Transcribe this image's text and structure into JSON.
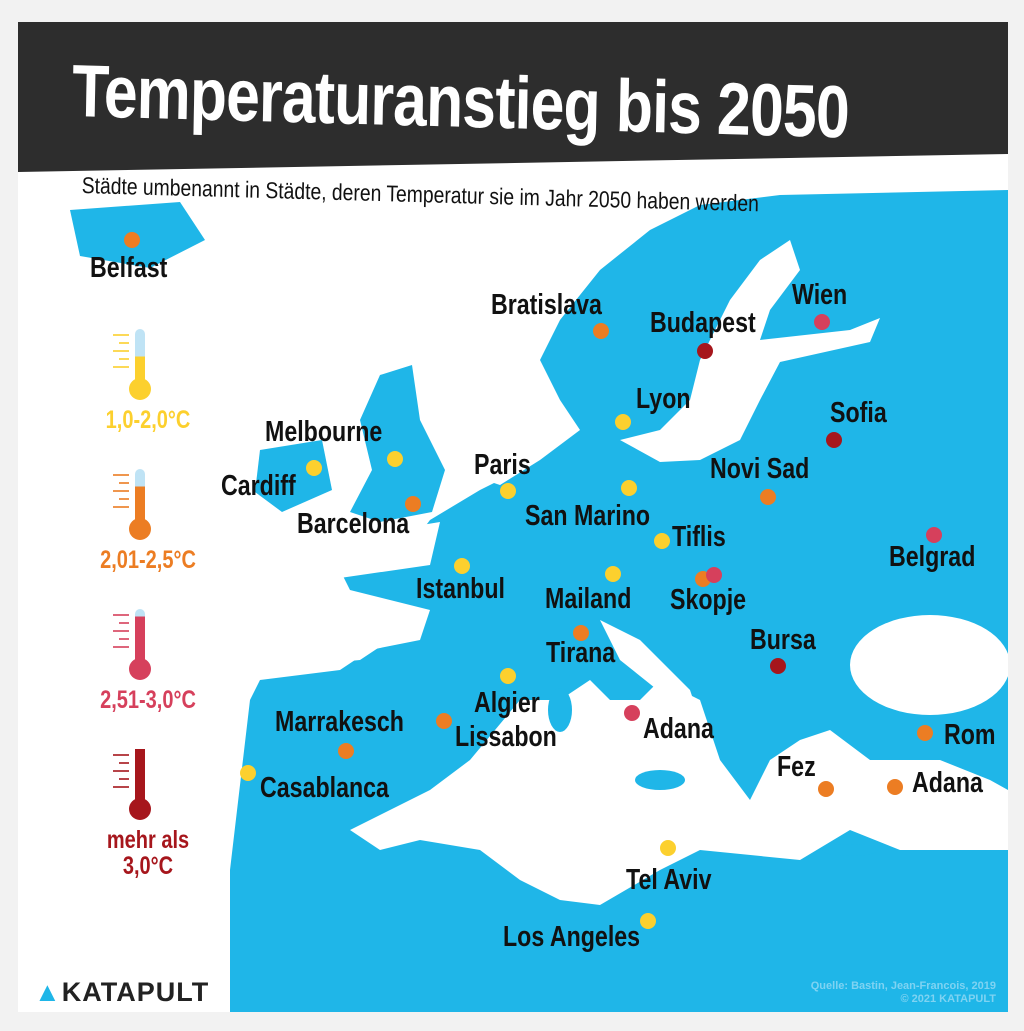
{
  "title": "Temperaturanstieg bis 2050",
  "subtitle": "Städte umbenannt in Städte, deren Temperatur sie im Jahr 2050 haben werden",
  "colors": {
    "land": "#1fb6e8",
    "sea": "#ffffff",
    "title_bar": "#2d2d2d",
    "yellow": "#fcd02e",
    "orange": "#ec7d23",
    "pink": "#d6405c",
    "darkred": "#a6161c"
  },
  "legend": [
    {
      "category": "yellow",
      "label": "1,0-2,0°C",
      "fill": 0.45
    },
    {
      "category": "orange",
      "label": "2,01-2,5°C",
      "fill": 0.65
    },
    {
      "category": "pink",
      "label": "2,51-3,0°C",
      "fill": 0.85
    },
    {
      "category": "darkred",
      "label": "mehr als 3,0°C",
      "fill": 1.0
    }
  ],
  "cities": [
    {
      "name": "Belfast",
      "category": "orange"
    },
    {
      "name": "Bratislava",
      "category": "orange"
    },
    {
      "name": "Budapest",
      "category": "darkred"
    },
    {
      "name": "Wien",
      "category": "pink"
    },
    {
      "name": "Lyon",
      "category": "yellow"
    },
    {
      "name": "Sofia",
      "category": "darkred"
    },
    {
      "name": "Melbourne",
      "category": "yellow"
    },
    {
      "name": "Cardiff",
      "category": "yellow"
    },
    {
      "name": "Barcelona",
      "category": "orange"
    },
    {
      "name": "Paris",
      "category": "yellow"
    },
    {
      "name": "San Marino",
      "category": "yellow"
    },
    {
      "name": "Novi Sad",
      "category": "orange"
    },
    {
      "name": "Tiflis",
      "category": "yellow"
    },
    {
      "name": "Belgrad",
      "category": "pink"
    },
    {
      "name": "Istanbul",
      "category": "yellow"
    },
    {
      "name": "Mailand",
      "category": "yellow"
    },
    {
      "name": "Skopje",
      "category": "orange"
    },
    {
      "name": "Tirana",
      "category": "orange"
    },
    {
      "name": "Bursa",
      "category": "darkred"
    },
    {
      "name": "Algier",
      "category": "yellow"
    },
    {
      "name": "Lissabon",
      "category": "orange"
    },
    {
      "name": "Adana",
      "category": "pink"
    },
    {
      "name": "Marrakesch",
      "category": "orange"
    },
    {
      "name": "Casablanca",
      "category": "yellow"
    },
    {
      "name": "Rom",
      "category": "orange"
    },
    {
      "name": "Fez",
      "category": "orange"
    },
    {
      "name": "Adana",
      "category": "orange"
    },
    {
      "name": "Tel Aviv",
      "category": "yellow"
    },
    {
      "name": "Los Angeles",
      "category": "yellow"
    }
  ],
  "extra_dots": [
    {
      "category": "pink"
    }
  ],
  "logo": "KATAPULT",
  "source": "Quelle: Bastin, Jean-Francois, 2019",
  "copyright": "© 2021 KATAPULT"
}
